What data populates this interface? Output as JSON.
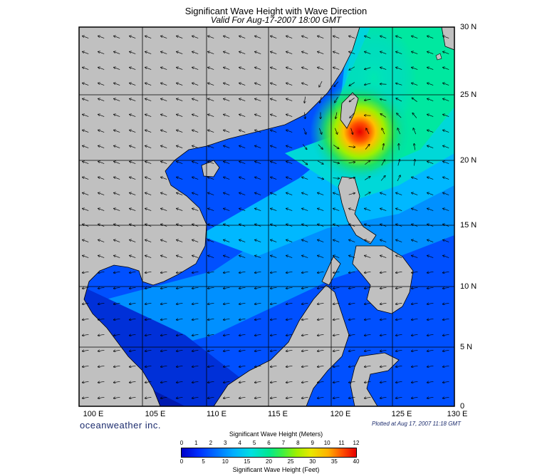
{
  "title": "Significant Wave Height with Wave Direction",
  "subtitle": "Valid For Aug-17-2007 18:00 GMT",
  "latitude_labels": [
    "30 N",
    "25 N",
    "20 N",
    "15 N",
    "10 N",
    "5 N",
    "0"
  ],
  "longitude_labels": [
    "100 E",
    "105 E",
    "110 E",
    "115 E",
    "120 E",
    "125 E",
    "130 E"
  ],
  "brand": "oceanweather inc.",
  "plotted_note": "Plotted at Aug 17, 2007 11:18 GMT",
  "colorbar": {
    "meters_title": "Significant Wave Height (Meters)",
    "meters_ticks": [
      "0",
      "1",
      "2",
      "3",
      "4",
      "5",
      "6",
      "7",
      "8",
      "9",
      "10",
      "11",
      "12"
    ],
    "feet_ticks": [
      "0",
      "5",
      "10",
      "15",
      "20",
      "25",
      "30",
      "35",
      "40"
    ],
    "feet_title": "Significant Wave Height (Feet)"
  },
  "colors": {
    "land": "#c0c0c0",
    "calm_sea": "#0040ff",
    "peak": "#ff2000"
  }
}
